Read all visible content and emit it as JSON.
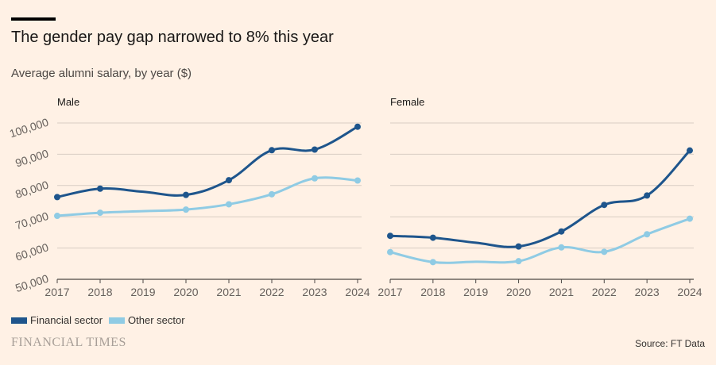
{
  "header": {
    "title": "The gender pay gap narrowed to 8% this year",
    "subtitle": "Average alumni salary, by year ($)"
  },
  "legend": [
    {
      "label": "Financial sector",
      "color": "#1e558c"
    },
    {
      "label": "Other sector",
      "color": "#8fcbe4"
    }
  ],
  "footer": {
    "logo": "FINANCIAL TIMES",
    "source": "Source: FT Data"
  },
  "chart_data": {
    "type": "line",
    "years": [
      2017,
      2018,
      2019,
      2020,
      2021,
      2022,
      2023,
      2024
    ],
    "marker_years": [
      2017,
      2018,
      2020,
      2021,
      2022,
      2023,
      2024
    ],
    "ylim": [
      50000,
      100000
    ],
    "yticks": [
      50000,
      60000,
      70000,
      80000,
      90000,
      100000
    ],
    "ytick_labels": [
      "50,000",
      "60,000",
      "70,000",
      "80,000",
      "90,000",
      "100,000"
    ],
    "xtick_labels": [
      "2017",
      "2018",
      "2019",
      "2020",
      "2021",
      "2022",
      "2023",
      "2024"
    ],
    "panels": [
      {
        "title": "Male",
        "series": [
          {
            "name": "Financial sector",
            "color": "#1e558c",
            "values": [
              76300,
              79000,
              78000,
              77000,
              81700,
              91300,
              91500,
              98800
            ]
          },
          {
            "name": "Other sector",
            "color": "#8fcbe4",
            "values": [
              70300,
              71300,
              71800,
              72300,
              74000,
              77200,
              82300,
              81600
            ]
          }
        ]
      },
      {
        "title": "Female",
        "series": [
          {
            "name": "Financial sector",
            "color": "#1e558c",
            "values": [
              63900,
              63300,
              61700,
              60500,
              65300,
              73800,
              76800,
              91200
            ]
          },
          {
            "name": "Other sector",
            "color": "#8fcbe4",
            "values": [
              58700,
              55500,
              55600,
              55800,
              60200,
              58800,
              64400,
              69400
            ]
          }
        ]
      }
    ]
  }
}
